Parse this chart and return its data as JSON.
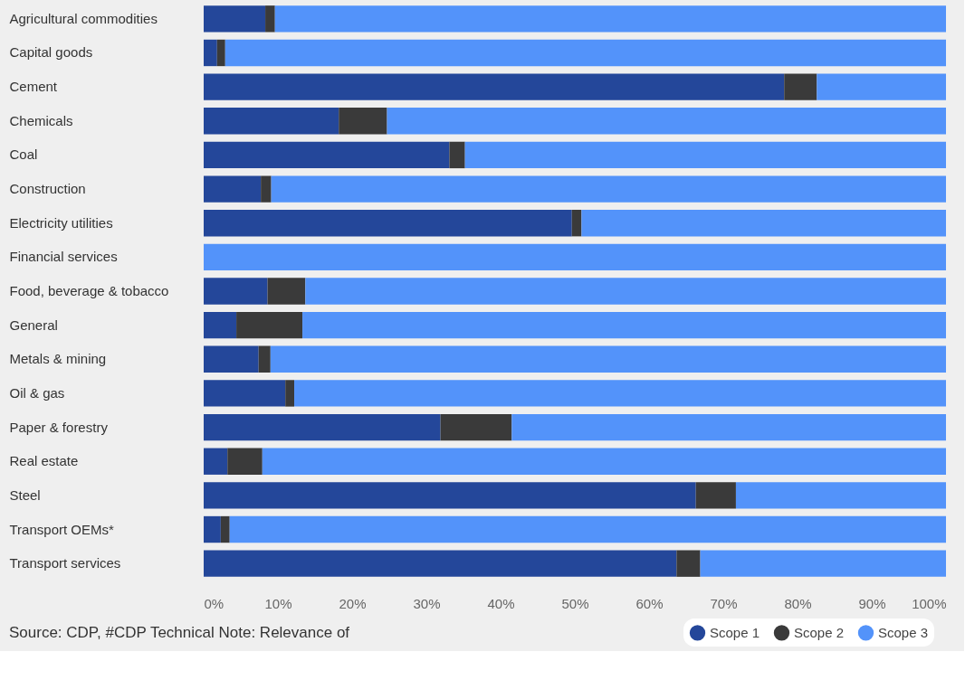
{
  "chart_data": {
    "type": "bar",
    "orientation": "horizontal",
    "stacked": true,
    "categories": [
      "Agricultural commodities",
      "Capital goods",
      "Cement",
      "Chemicals",
      "Coal",
      "Construction",
      "Electricity utilities",
      "Financial services",
      "Food, beverage & tobacco",
      "General",
      "Metals & mining",
      "Oil & gas",
      "Paper & forestry",
      "Real estate",
      "Steel",
      "Transport OEMs*",
      "Transport services"
    ],
    "series": [
      {
        "name": "Scope 1",
        "color": "#24479a",
        "values": [
          8.3,
          1.8,
          78.2,
          18.2,
          33.1,
          7.7,
          49.6,
          0,
          8.6,
          4.4,
          7.4,
          11.0,
          31.9,
          3.2,
          66.3,
          2.3,
          63.7
        ]
      },
      {
        "name": "Scope 2",
        "color": "#3a3a3a",
        "values": [
          1.3,
          1.1,
          4.4,
          6.5,
          2.1,
          1.4,
          1.3,
          0,
          5.1,
          8.9,
          1.6,
          1.2,
          9.6,
          4.7,
          5.4,
          1.2,
          3.2
        ]
      },
      {
        "name": "Scope 3",
        "color": "#5393fa",
        "values": [
          90.4,
          97.1,
          17.4,
          75.3,
          64.8,
          90.9,
          49.1,
          100,
          86.3,
          86.7,
          91.0,
          87.8,
          58.5,
          92.1,
          28.3,
          96.5,
          33.1
        ]
      }
    ],
    "xlim": [
      0,
      100
    ],
    "xticks": [
      {
        "value": 0,
        "label": "0%"
      },
      {
        "value": 10,
        "label": "10%"
      },
      {
        "value": 20,
        "label": "20%"
      },
      {
        "value": 30,
        "label": "30%"
      },
      {
        "value": 40,
        "label": "40%"
      },
      {
        "value": 50,
        "label": "50%"
      },
      {
        "value": 60,
        "label": "60%"
      },
      {
        "value": 70,
        "label": "70%"
      },
      {
        "value": 80,
        "label": "80%"
      },
      {
        "value": 90,
        "label": "90%"
      },
      {
        "value": 100,
        "label": "100%"
      }
    ],
    "grid": false,
    "legend": "bottom right",
    "annotations": [
      "Source: CDP, #CDP Technical Note: Relevance of"
    ]
  }
}
